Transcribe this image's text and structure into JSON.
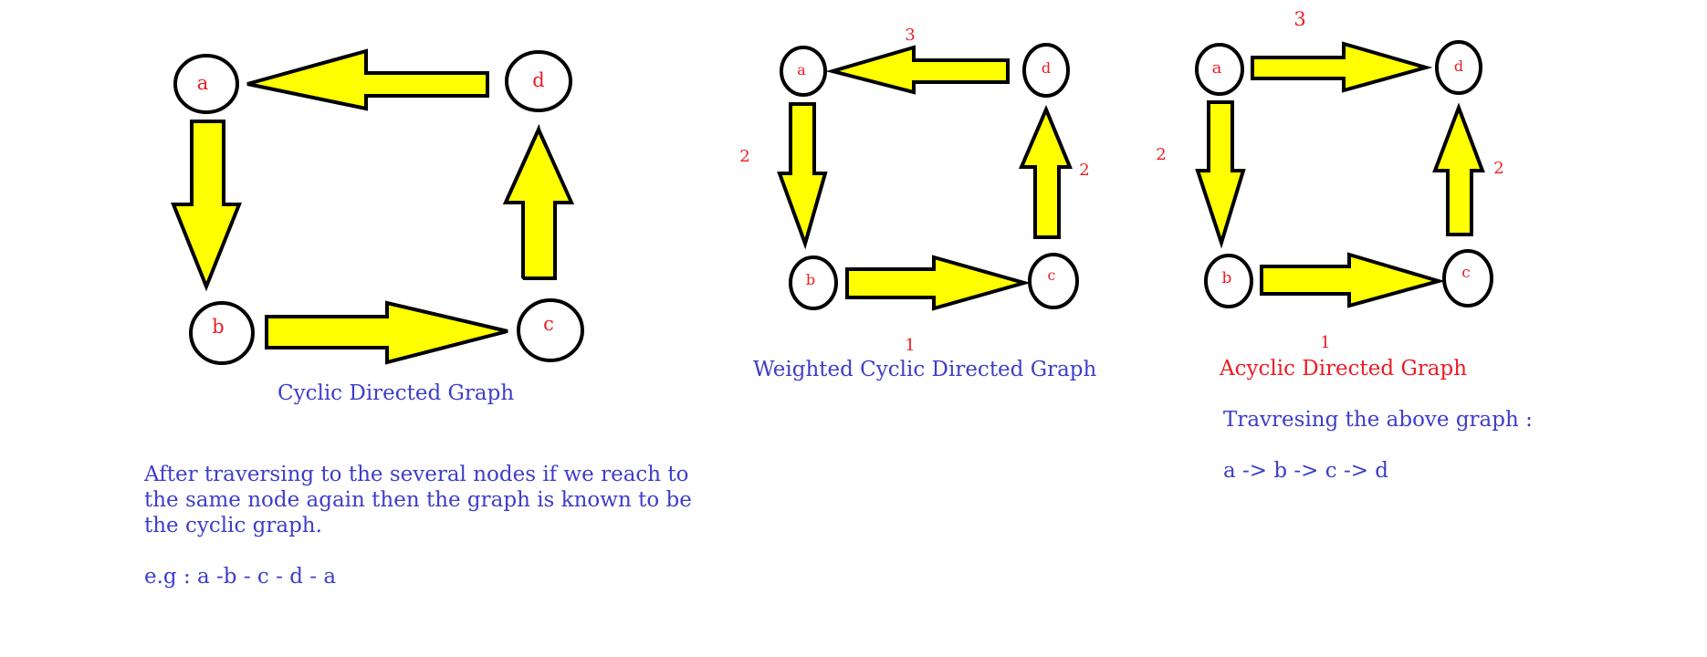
{
  "colors": {
    "arrow_fill": "#ffff00",
    "stroke": "#000000",
    "node_label": "#ee1c24",
    "weight_label": "#ee1c24",
    "text_blue": "#3d3dcc",
    "text_red": "#ee1c24"
  },
  "graphs": {
    "cyclic": {
      "caption": "Cyclic Directed Graph",
      "nodes": {
        "a": "a",
        "b": "b",
        "c": "c",
        "d": "d"
      },
      "description_lines": [
        "After traversing to the several nodes if we reach to",
        "the same node again then the graph is known to be",
        "the cyclic graph."
      ],
      "example": "e.g : a -b - c - d - a"
    },
    "weighted": {
      "caption": "Weighted Cyclic Directed Graph",
      "nodes": {
        "a": "a",
        "b": "b",
        "c": "c",
        "d": "d"
      },
      "weights": {
        "d_a": "3",
        "a_b": "2",
        "b_c": "1",
        "c_d": "2"
      }
    },
    "acyclic": {
      "caption": "Acyclic Directed Graph",
      "nodes": {
        "a": "a",
        "b": "b",
        "c": "c",
        "d": "d"
      },
      "weights": {
        "a_d": "3",
        "a_b": "2",
        "b_c": "1",
        "c_d": "2"
      },
      "traversal_label": "Travresing the above graph :",
      "traversal_path": "a -> b -> c -> d"
    }
  }
}
